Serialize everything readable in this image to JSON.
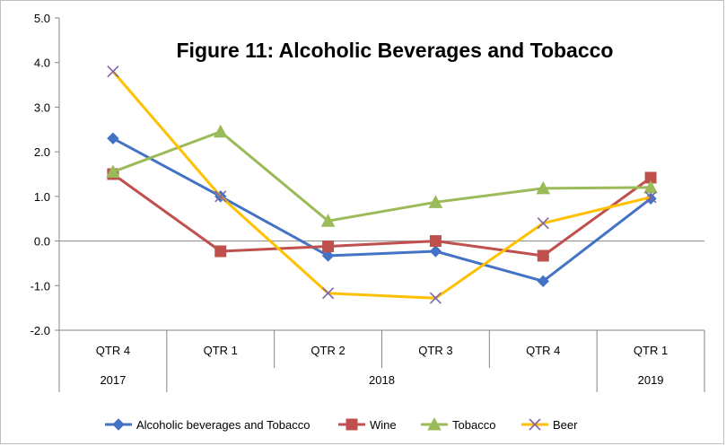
{
  "chart_data": {
    "type": "line",
    "title": "Figure 11: Alcoholic Beverages and Tobacco",
    "categories": [
      "QTR 4",
      "QTR 1",
      "QTR 2",
      "QTR 3",
      "QTR 4",
      "QTR 1"
    ],
    "category_groups": [
      {
        "label": "2017",
        "span": 1
      },
      {
        "label": "2018",
        "span": 4
      },
      {
        "label": "2019",
        "span": 1
      }
    ],
    "ylim": [
      -2.0,
      5.0
    ],
    "yticks": [
      "5.0",
      "4.0",
      "3.0",
      "2.0",
      "1.0",
      "0.0",
      "-1.0",
      "-2.0"
    ],
    "grid": false,
    "legend_position": "bottom",
    "series": [
      {
        "name": "Alcoholic beverages and Tobacco",
        "color": "#4472C4",
        "marker": "diamond",
        "values": [
          2.3,
          1.0,
          -0.33,
          -0.23,
          -0.9,
          0.95
        ]
      },
      {
        "name": "Wine",
        "color": "#C0504D",
        "marker": "square",
        "values": [
          1.5,
          -0.23,
          -0.12,
          0.0,
          -0.33,
          1.42
        ]
      },
      {
        "name": "Tobacco",
        "color": "#9BBB59",
        "marker": "triangle",
        "values": [
          1.55,
          2.45,
          0.45,
          0.87,
          1.18,
          1.2
        ]
      },
      {
        "name": "Beer",
        "color": "#FFC000",
        "marker": "x",
        "values": [
          3.8,
          1.0,
          -1.17,
          -1.28,
          0.4,
          0.98
        ]
      }
    ]
  }
}
